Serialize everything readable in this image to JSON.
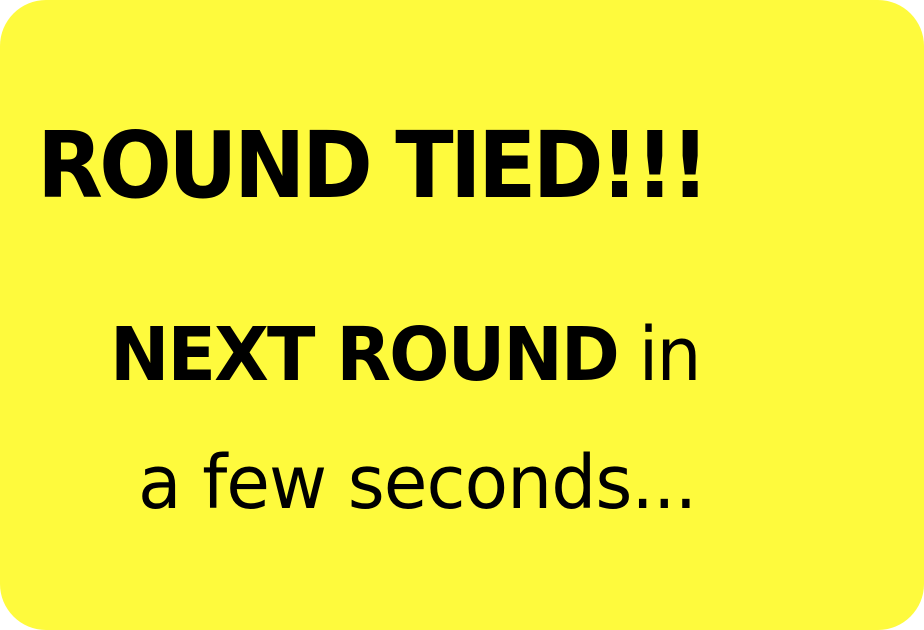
{
  "screen": {
    "background_color": "#FEFA3D",
    "text_color": "#000000"
  },
  "message": {
    "headline": "ROUND TIED!!!",
    "next_round_bold": "NEXT ROUND",
    "next_round_suffix": "in",
    "countdown_text": "a few seconds..."
  }
}
